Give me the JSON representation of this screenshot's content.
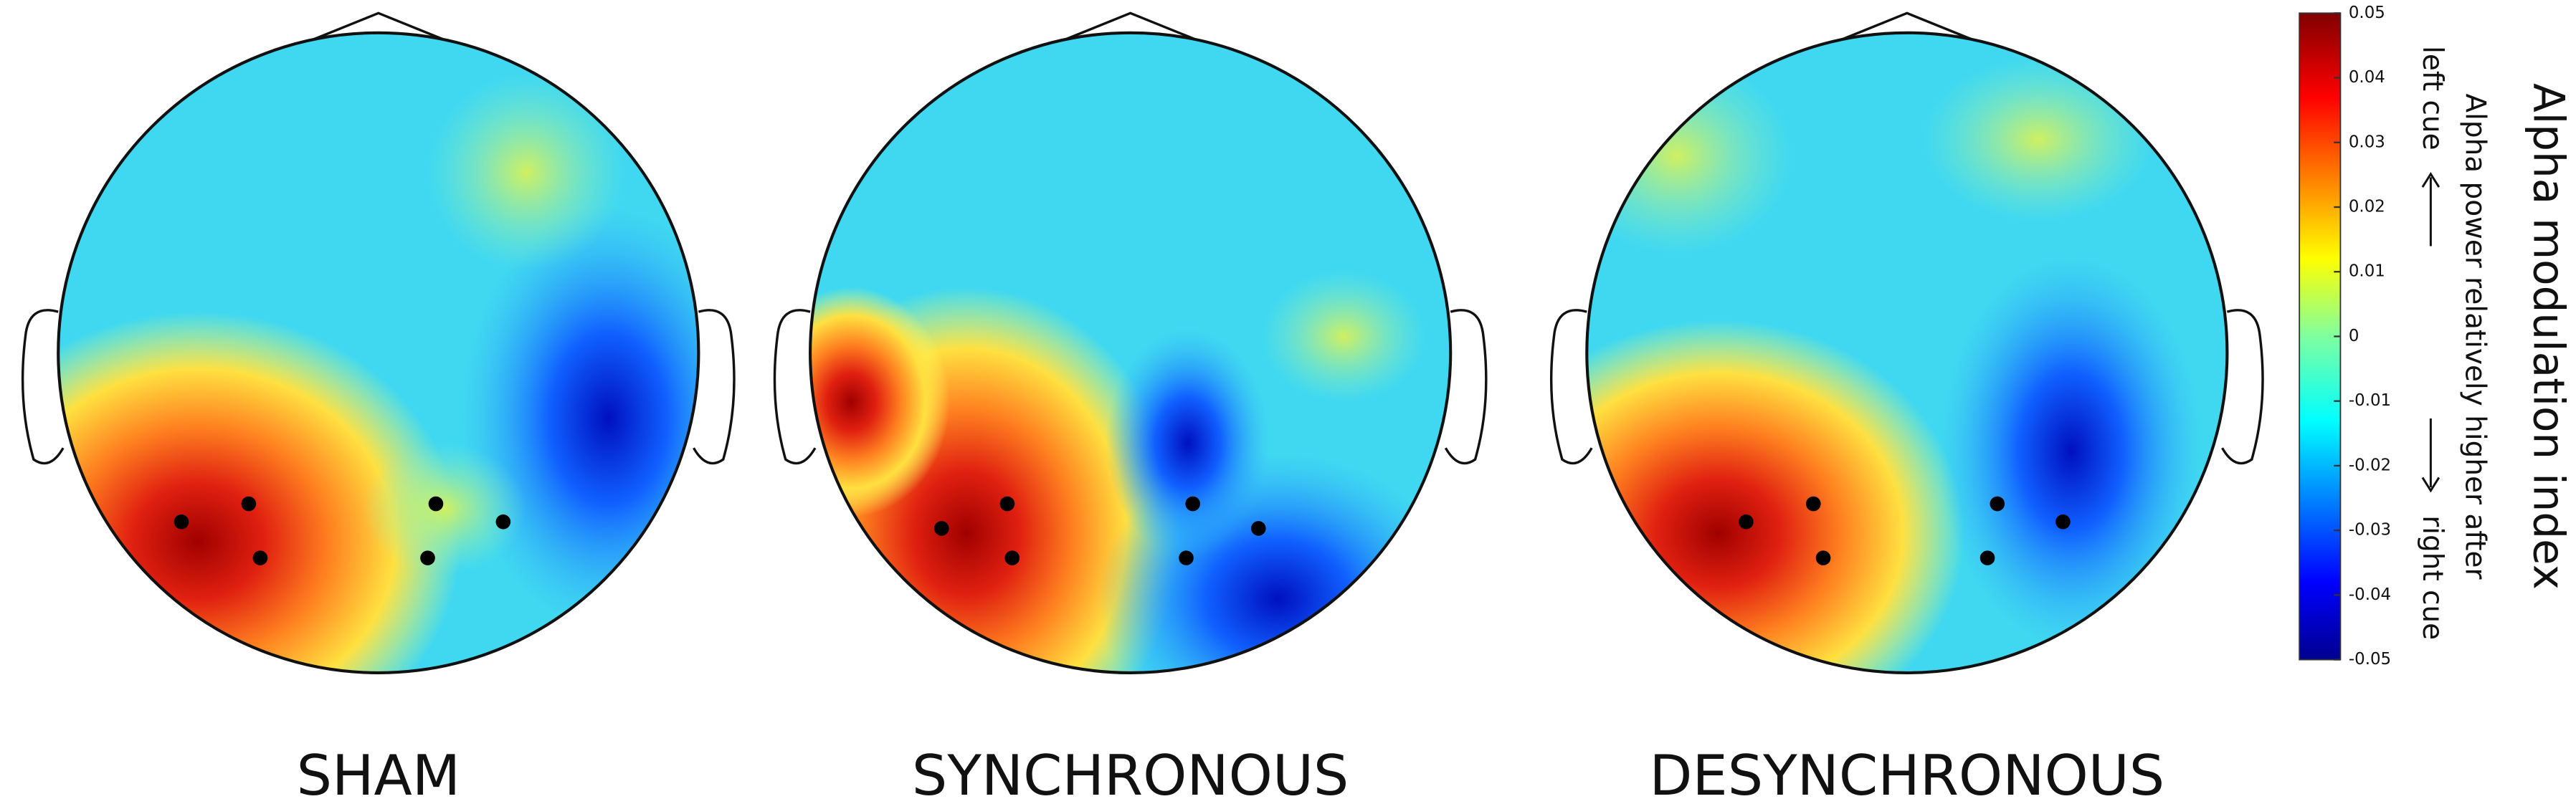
{
  "panels": [
    {
      "label": "SHAM"
    },
    {
      "label": "SYNCHRONOUS"
    },
    {
      "label": "DESYNCHRONOUS"
    }
  ],
  "colorbar": {
    "title": "Alpha modulation index",
    "subtitle": "Alpha power relatively higher after",
    "top_label": "left cue",
    "bottom_label": "right cue",
    "lim": [
      -0.05,
      0.05
    ],
    "ticks": [
      0.05,
      0.04,
      0.03,
      0.02,
      0.01,
      0,
      -0.01,
      -0.02,
      -0.03,
      -0.04,
      -0.05
    ]
  }
}
